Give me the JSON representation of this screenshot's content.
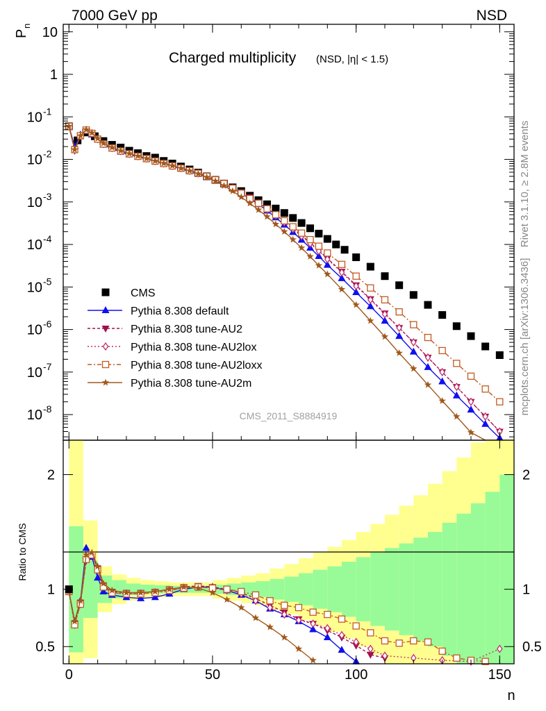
{
  "header": {
    "left_label": "7000 GeV pp",
    "right_label": "NSD"
  },
  "side_labels": {
    "rivet": "Rivet 3.1.10, ≥ 2.8M events",
    "mcplots": "mcplots.cern.ch [arXiv:1306.3436]"
  },
  "chart_data": [
    {
      "type": "line",
      "panel": "main",
      "title": "Charged multiplicity",
      "subtitle": "(NSD, |η| < 1.5)",
      "analysis_id": "CMS_2011_S8884919",
      "ylabel": "P",
      "ylabel_sub": "n",
      "xlim": [
        -2,
        155
      ],
      "ylim": [
        2.5e-09,
        15
      ],
      "yscale": "log",
      "y_tick_labels": [
        "10",
        "1",
        "10^-1",
        "10^-2",
        "10^-3",
        "10^-4",
        "10^-5",
        "10^-6",
        "10^-7",
        "10^-8"
      ],
      "legend_position": "bottom-left",
      "series": [
        {
          "name": "CMS",
          "color": "#000000",
          "marker": "square",
          "x": [
            0,
            3,
            6,
            9,
            12,
            15,
            18,
            21,
            24,
            27,
            30,
            33,
            36,
            39,
            42,
            45,
            48,
            51,
            54,
            57,
            60,
            63,
            66,
            69,
            72,
            75,
            78,
            81,
            84,
            87,
            90,
            93,
            96,
            100,
            105,
            110,
            115,
            120,
            125,
            130,
            135,
            140,
            145,
            150
          ],
          "y": [
            0.06,
            0.028,
            0.043,
            0.035,
            0.027,
            0.022,
            0.019,
            0.016,
            0.014,
            0.012,
            0.011,
            0.0092,
            0.008,
            0.0068,
            0.0058,
            0.0049,
            0.004,
            0.0033,
            0.0027,
            0.0022,
            0.0018,
            0.0014,
            0.0011,
            0.00088,
            0.0007,
            0.00055,
            0.00042,
            0.00032,
            0.00024,
            0.00018,
            0.000135,
            0.0001,
            7.5e-05,
            5e-05,
            3e-05,
            1.8e-05,
            1.1e-05,
            6.5e-06,
            3.8e-06,
            2.2e-06,
            1.2e-06,
            7e-07,
            4e-07,
            2.5e-07
          ]
        },
        {
          "name": "Pythia 8.308 default",
          "color": "#1010ee",
          "marker": "triangle-up",
          "x": [
            0,
            2,
            4,
            6,
            8,
            10,
            12,
            15,
            18,
            21,
            24,
            27,
            30,
            33,
            36,
            39,
            42,
            45,
            48,
            51,
            54,
            57,
            60,
            63,
            66,
            69,
            72,
            75,
            78,
            81,
            84,
            87,
            90,
            95,
            100,
            105,
            110,
            115,
            120,
            125,
            130,
            135,
            140,
            145,
            150
          ],
          "y": [
            0.06,
            0.02,
            0.038,
            0.046,
            0.038,
            0.029,
            0.022,
            0.018,
            0.015,
            0.013,
            0.0115,
            0.0102,
            0.009,
            0.0079,
            0.0069,
            0.006,
            0.0052,
            0.0045,
            0.0038,
            0.0032,
            0.0026,
            0.0021,
            0.0016,
            0.0012,
            0.00088,
            0.00062,
            0.00043,
            0.00029,
            0.000195,
            0.000128,
            8.3e-05,
            5.3e-05,
            3.3e-05,
            1.6e-05,
            7.5e-06,
            3.5e-06,
            1.6e-06,
            7e-07,
            3e-07,
            1.3e-07,
            6e-08,
            2.8e-08,
            1.3e-08,
            6e-09,
            2.8e-09
          ]
        },
        {
          "name": "Pythia 8.308 tune-AU2",
          "color": "#a01050",
          "marker": "triangle-down",
          "x": [
            0,
            2,
            4,
            6,
            8,
            10,
            12,
            15,
            18,
            21,
            24,
            27,
            30,
            33,
            36,
            39,
            42,
            45,
            48,
            51,
            54,
            57,
            60,
            63,
            66,
            69,
            72,
            75,
            78,
            81,
            84,
            87,
            90,
            95,
            100,
            105,
            110,
            115,
            120,
            125,
            130,
            135,
            140,
            145,
            150
          ],
          "y": [
            0.06,
            0.016,
            0.035,
            0.05,
            0.042,
            0.031,
            0.024,
            0.019,
            0.016,
            0.0137,
            0.012,
            0.0105,
            0.0092,
            0.0081,
            0.0071,
            0.0063,
            0.0055,
            0.0048,
            0.0041,
            0.0034,
            0.0028,
            0.0022,
            0.0017,
            0.0013,
            0.00097,
            0.00071,
            0.0005,
            0.00035,
            0.00024,
            0.000165,
            0.00011,
            7.3e-05,
            4.7e-05,
            2.3e-05,
            1.1e-05,
            5.2e-06,
            2.4e-06,
            1.1e-06,
            5e-07,
            2.2e-07,
            1e-07,
            4.5e-08,
            2e-08,
            9e-09,
            4e-09
          ]
        },
        {
          "name": "Pythia 8.308 tune-AU2lox",
          "color": "#c0306a",
          "marker": "diamond-open",
          "x": [
            0,
            2,
            4,
            6,
            8,
            10,
            12,
            15,
            18,
            21,
            24,
            27,
            30,
            33,
            36,
            39,
            42,
            45,
            48,
            51,
            54,
            57,
            60,
            63,
            66,
            69,
            72,
            75,
            78,
            81,
            84,
            87,
            90,
            95,
            100,
            105,
            110,
            115,
            120,
            125,
            130,
            135,
            140,
            145,
            150
          ],
          "y": [
            0.06,
            0.017,
            0.036,
            0.049,
            0.041,
            0.03,
            0.023,
            0.0185,
            0.0157,
            0.0135,
            0.0118,
            0.0104,
            0.0091,
            0.008,
            0.007,
            0.0062,
            0.0054,
            0.0047,
            0.004,
            0.0033,
            0.0027,
            0.0021,
            0.0016,
            0.0012,
            0.00092,
            0.00067,
            0.00048,
            0.00033,
            0.00023,
            0.000156,
            0.000105,
            7e-05,
            4.5e-05,
            2.2e-05,
            1.05e-05,
            5e-06,
            2.3e-06,
            1.1e-06,
            5e-07,
            2.2e-07,
            1e-07,
            4.5e-08,
            2e-08,
            9e-09,
            4e-09
          ]
        },
        {
          "name": "Pythia 8.308 tune-AU2loxx",
          "color": "#c05a20",
          "marker": "square-open",
          "x": [
            0,
            2,
            4,
            6,
            8,
            10,
            12,
            15,
            18,
            21,
            24,
            27,
            30,
            33,
            36,
            39,
            42,
            45,
            48,
            51,
            54,
            57,
            60,
            63,
            66,
            69,
            72,
            75,
            78,
            81,
            84,
            87,
            90,
            95,
            100,
            105,
            110,
            115,
            120,
            125,
            130,
            135,
            140,
            145,
            150
          ],
          "y": [
            0.06,
            0.017,
            0.036,
            0.049,
            0.041,
            0.03,
            0.023,
            0.0185,
            0.0157,
            0.0135,
            0.0118,
            0.0104,
            0.0091,
            0.008,
            0.007,
            0.0062,
            0.0054,
            0.0047,
            0.004,
            0.0033,
            0.0027,
            0.0021,
            0.0016,
            0.0012,
            0.00093,
            0.00069,
            0.0005,
            0.00036,
            0.00026,
            0.000185,
            0.00013,
            9.1e-05,
            6.3e-05,
            3.4e-05,
            1.8e-05,
            9.5e-06,
            5e-06,
            2.6e-06,
            1.3e-06,
            6.5e-07,
            3.2e-07,
            1.6e-07,
            8e-08,
            4e-08,
            2e-08
          ]
        },
        {
          "name": "Pythia 8.308 tune-AU2m",
          "color": "#a0581a",
          "marker": "star",
          "x": [
            0,
            2,
            4,
            6,
            8,
            10,
            12,
            15,
            18,
            21,
            24,
            27,
            30,
            33,
            36,
            39,
            42,
            45,
            48,
            51,
            54,
            57,
            60,
            63,
            66,
            69,
            72,
            75,
            78,
            81,
            84,
            87,
            90,
            95,
            100,
            105,
            110,
            115,
            120,
            125,
            130,
            135,
            140,
            145,
            150
          ],
          "y": [
            0.06,
            0.017,
            0.036,
            0.05,
            0.042,
            0.031,
            0.024,
            0.019,
            0.016,
            0.0137,
            0.012,
            0.0105,
            0.0092,
            0.0081,
            0.0071,
            0.0062,
            0.0054,
            0.0046,
            0.0038,
            0.0031,
            0.0024,
            0.0018,
            0.0013,
            0.00093,
            0.00065,
            0.00045,
            0.0003,
            0.0002,
            0.00013,
            8.3e-05,
            5.2e-05,
            3.2e-05,
            2e-05,
            8.8e-06,
            3.8e-06,
            1.6e-06,
            6.8e-07,
            2.8e-07,
            1.2e-07,
            5e-08,
            2.1e-08,
            9e-09,
            3.8e-09,
            1.6e-09,
            7e-10
          ]
        }
      ]
    },
    {
      "type": "line",
      "panel": "ratio",
      "xlabel": "n",
      "ylabel": "Ratio to CMS",
      "xlim": [
        -2,
        155
      ],
      "ylim": [
        0.35,
        2.3
      ],
      "x_tick_labels": [
        "0",
        "50",
        "100",
        "150"
      ],
      "y_tick_labels": [
        "0.5",
        "1",
        "2"
      ],
      "reference_line": 1,
      "uncertainty_bands": {
        "x_edges": [
          0,
          5,
          10,
          15,
          20,
          25,
          30,
          35,
          40,
          45,
          50,
          55,
          60,
          65,
          70,
          75,
          80,
          85,
          90,
          95,
          100,
          105,
          110,
          115,
          120,
          125,
          130,
          135,
          140,
          145,
          150,
          155
        ],
        "inner_half_width": [
          0.55,
          0.25,
          0.12,
          0.08,
          0.05,
          0.04,
          0.035,
          0.03,
          0.03,
          0.03,
          0.04,
          0.05,
          0.06,
          0.07,
          0.09,
          0.11,
          0.14,
          0.17,
          0.2,
          0.24,
          0.28,
          0.32,
          0.36,
          0.4,
          0.45,
          0.5,
          0.58,
          0.66,
          0.75,
          0.85,
          1.0
        ],
        "outer_half_width": [
          1.3,
          0.6,
          0.2,
          0.13,
          0.1,
          0.08,
          0.07,
          0.06,
          0.06,
          0.06,
          0.08,
          0.1,
          0.12,
          0.14,
          0.18,
          0.22,
          0.27,
          0.32,
          0.37,
          0.43,
          0.5,
          0.57,
          0.65,
          0.73,
          0.82,
          0.92,
          1.03,
          1.15,
          1.28,
          1.4,
          1.5
        ],
        "inner_color": "#98fb98",
        "outer_color": "#ffff90"
      },
      "series": [
        {
          "name": "Pythia 8.308 default",
          "color": "#1010ee",
          "x": [
            0,
            2,
            4,
            6,
            8,
            10,
            12,
            15,
            20,
            25,
            30,
            35,
            40,
            45,
            50,
            55,
            60,
            65,
            70,
            75,
            80,
            85,
            90,
            95,
            100
          ],
          "y": [
            0.98,
            0.72,
            0.9,
            1.36,
            1.28,
            1.1,
            0.98,
            0.95,
            0.93,
            0.92,
            0.93,
            0.96,
            1.0,
            1.02,
            1.02,
            0.99,
            0.95,
            0.9,
            0.83,
            0.78,
            0.72,
            0.65,
            0.58,
            0.47,
            0.37
          ]
        },
        {
          "name": "Pythia 8.308 tune-AU2",
          "color": "#a01050",
          "x": [
            0,
            2,
            4,
            6,
            8,
            10,
            12,
            15,
            20,
            25,
            30,
            35,
            40,
            45,
            50,
            55,
            60,
            65,
            70,
            75,
            80,
            85,
            90,
            95,
            100,
            105,
            110
          ],
          "y": [
            0.98,
            0.7,
            0.88,
            1.25,
            1.3,
            1.18,
            1.03,
            0.98,
            0.97,
            0.97,
            0.98,
            1.0,
            1.02,
            1.03,
            1.02,
            1.0,
            0.97,
            0.92,
            0.86,
            0.8,
            0.74,
            0.7,
            0.64,
            0.58,
            0.51,
            0.43,
            0.4
          ]
        },
        {
          "name": "Pythia 8.308 tune-AU2lox",
          "color": "#c0306a",
          "x": [
            0,
            2,
            4,
            6,
            8,
            10,
            12,
            15,
            20,
            25,
            30,
            35,
            40,
            45,
            50,
            55,
            60,
            65,
            70,
            75,
            80,
            85,
            90,
            95,
            100,
            105,
            110,
            120,
            130,
            140,
            150
          ],
          "y": [
            0.98,
            0.69,
            0.87,
            1.26,
            1.3,
            1.17,
            1.02,
            0.97,
            0.96,
            0.96,
            0.97,
            0.99,
            1.01,
            1.02,
            1.01,
            0.99,
            0.96,
            0.9,
            0.84,
            0.78,
            0.73,
            0.7,
            0.66,
            0.6,
            0.54,
            0.48,
            0.42,
            0.4,
            0.38,
            0.37,
            0.48
          ]
        },
        {
          "name": "Pythia 8.308 tune-AU2loxx",
          "color": "#c05a20",
          "x": [
            0,
            2,
            4,
            6,
            8,
            10,
            12,
            15,
            20,
            25,
            30,
            35,
            40,
            45,
            50,
            55,
            60,
            65,
            70,
            75,
            80,
            85,
            90,
            95,
            100,
            105,
            110,
            115,
            120,
            125,
            130,
            135,
            140,
            145
          ],
          "y": [
            0.98,
            0.69,
            0.87,
            1.26,
            1.3,
            1.17,
            1.02,
            0.97,
            0.96,
            0.96,
            0.97,
            0.99,
            1.01,
            1.02,
            1.01,
            1.0,
            0.98,
            0.95,
            0.9,
            0.86,
            0.84,
            0.8,
            0.78,
            0.74,
            0.68,
            0.62,
            0.55,
            0.53,
            0.55,
            0.54,
            0.46,
            0.4,
            0.38,
            0.37
          ]
        },
        {
          "name": "Pythia 8.308 tune-AU2m",
          "color": "#a0581a",
          "x": [
            0,
            2,
            4,
            6,
            8,
            10,
            12,
            15,
            20,
            25,
            30,
            35,
            40,
            45,
            50,
            55,
            60,
            65,
            70,
            75,
            80,
            85
          ],
          "y": [
            0.98,
            0.72,
            0.9,
            1.3,
            1.32,
            1.2,
            1.05,
            0.99,
            0.97,
            0.97,
            0.98,
            1.0,
            1.02,
            1.01,
            0.97,
            0.91,
            0.84,
            0.75,
            0.67,
            0.58,
            0.48,
            0.38
          ]
        }
      ]
    }
  ]
}
